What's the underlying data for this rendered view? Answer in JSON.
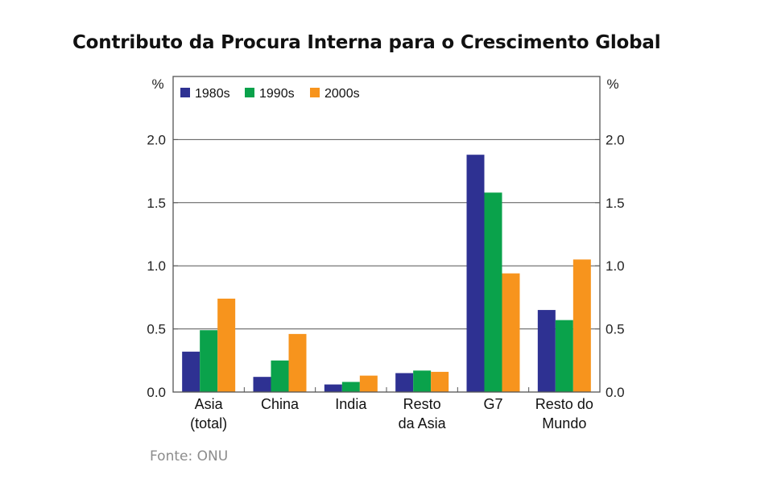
{
  "chart_data": {
    "type": "bar",
    "title": "Contributo da Procura Interna para o  Crescimento Global",
    "ylabel_left": "%",
    "ylabel_right": "%",
    "ylim": [
      0,
      2.5
    ],
    "yticks": [
      "0.0",
      "0.5",
      "1.0",
      "1.5",
      "2.0"
    ],
    "categories": [
      [
        "Asia",
        "(total)"
      ],
      [
        "China"
      ],
      [
        "India"
      ],
      [
        "Resto",
        "da Asia"
      ],
      [
        "G7"
      ],
      [
        "Resto do",
        "Mundo"
      ]
    ],
    "series": [
      {
        "name": "1980s",
        "color": "#2e3192",
        "values": [
          0.32,
          0.12,
          0.06,
          0.15,
          1.88,
          0.65
        ]
      },
      {
        "name": "1990s",
        "color": "#0aa24b",
        "values": [
          0.49,
          0.25,
          0.08,
          0.17,
          1.58,
          0.57
        ]
      },
      {
        "name": "2000s",
        "color": "#f7941d",
        "values": [
          0.74,
          0.46,
          0.13,
          0.16,
          0.94,
          1.05
        ]
      }
    ],
    "grid": true,
    "legend": "top-left"
  },
  "source": "Fonte: ONU"
}
